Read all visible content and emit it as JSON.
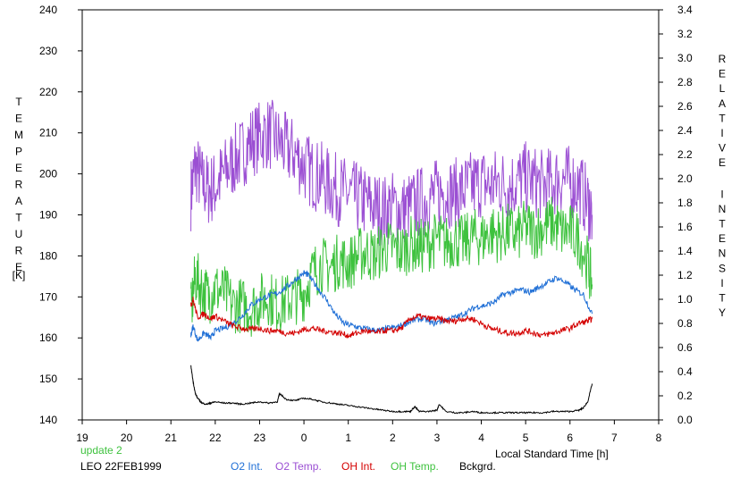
{
  "chart_data": {
    "type": "line",
    "title": "",
    "xlabel": "Local Standard Time [h]",
    "ylabel_left_letters": [
      "T",
      "E",
      "M",
      "P",
      "E",
      "R",
      "A",
      "T",
      "U",
      "R",
      "E"
    ],
    "ylabel_left_unit": "[K]",
    "ylabel_right_letters": [
      "R",
      "E",
      "L",
      "A",
      "T",
      "I",
      "V",
      "E",
      "I",
      "N",
      "T",
      "E",
      "N",
      "S",
      "I",
      "T",
      "Y"
    ],
    "x_ticks": [
      "19",
      "20",
      "21",
      "22",
      "23",
      "0",
      "1",
      "2",
      "3",
      "4",
      "5",
      "6",
      "7",
      "8"
    ],
    "xlim": [
      19,
      32
    ],
    "ylim_left": [
      140,
      240
    ],
    "y_ticks_left": [
      "140",
      "150",
      "160",
      "170",
      "180",
      "190",
      "200",
      "210",
      "220",
      "230",
      "240"
    ],
    "ylim_right": [
      0.0,
      3.4
    ],
    "y_ticks_right": [
      "0.0",
      "0.2",
      "0.4",
      "0.6",
      "0.8",
      "1.0",
      "1.2",
      "1.4",
      "1.6",
      "1.8",
      "2.0",
      "2.2",
      "2.4",
      "2.6",
      "2.8",
      "3.0",
      "3.2",
      "3.4"
    ],
    "grid": false,
    "update_note": "update 2",
    "station_label": "LEO 22FEB1999",
    "series": [
      {
        "name": "O2 Int.",
        "axis": "right",
        "color": "#1f6fd6",
        "x": [
          21.45,
          21.5,
          21.6,
          21.75,
          21.9,
          22.0,
          22.2,
          22.4,
          22.6,
          22.8,
          23.0,
          23.2,
          23.4,
          23.6,
          23.8,
          24.0,
          24.1,
          24.3,
          24.5,
          24.7,
          24.9,
          25.1,
          25.3,
          25.5,
          25.7,
          25.9,
          26.1,
          26.3,
          26.5,
          26.7,
          26.9,
          27.1,
          27.3,
          27.5,
          27.7,
          27.9,
          28.1,
          28.3,
          28.5,
          28.7,
          28.9,
          29.1,
          29.3,
          29.5,
          29.7,
          29.9,
          30.1,
          30.3,
          30.5
        ],
        "y": [
          0.7,
          0.78,
          0.66,
          0.72,
          0.68,
          0.74,
          0.76,
          0.8,
          0.86,
          0.95,
          1.0,
          1.03,
          1.05,
          1.1,
          1.16,
          1.22,
          1.2,
          1.1,
          1.0,
          0.88,
          0.8,
          0.78,
          0.76,
          0.75,
          0.74,
          0.76,
          0.77,
          0.8,
          0.83,
          0.84,
          0.8,
          0.82,
          0.84,
          0.86,
          0.9,
          0.94,
          0.95,
          0.98,
          1.04,
          1.06,
          1.08,
          1.06,
          1.1,
          1.14,
          1.18,
          1.14,
          1.08,
          1.04,
          0.88
        ]
      },
      {
        "name": "O2 Temp.",
        "axis": "left",
        "color": "#9b4fd3",
        "x": [
          21.45,
          21.55,
          21.7,
          21.85,
          22.0,
          22.2,
          22.4,
          22.6,
          22.8,
          23.0,
          23.2,
          23.4,
          23.6,
          23.8,
          24.0,
          24.2,
          24.4,
          24.6,
          24.8,
          25.0,
          25.2,
          25.4,
          25.6,
          25.8,
          26.0,
          26.2,
          26.4,
          26.6,
          26.8,
          27.0,
          27.2,
          27.4,
          27.6,
          27.8,
          28.0,
          28.2,
          28.4,
          28.6,
          28.8,
          29.0,
          29.2,
          29.4,
          29.6,
          29.8,
          30.0,
          30.2,
          30.4,
          30.5
        ],
        "y": [
          195,
          202,
          198,
          196,
          197,
          200,
          203,
          205,
          208,
          209,
          210,
          208,
          206,
          205,
          202,
          200,
          199,
          197,
          196,
          195,
          194,
          193,
          192,
          191,
          192,
          191,
          192,
          193,
          194,
          195,
          196,
          195,
          196,
          197,
          198,
          197,
          198,
          197,
          198,
          199,
          198,
          197,
          198,
          199,
          198,
          197,
          193,
          190
        ]
      },
      {
        "name": "OH Int.",
        "axis": "right",
        "color": "#d40000",
        "x": [
          21.45,
          21.5,
          21.6,
          21.75,
          21.9,
          22.0,
          22.2,
          22.4,
          22.6,
          22.8,
          23.0,
          23.2,
          23.4,
          23.6,
          23.8,
          24.0,
          24.2,
          24.4,
          24.6,
          24.8,
          25.0,
          25.2,
          25.4,
          25.6,
          25.8,
          26.0,
          26.2,
          26.4,
          26.6,
          26.8,
          27.0,
          27.2,
          27.4,
          27.6,
          27.8,
          28.0,
          28.2,
          28.4,
          28.6,
          28.8,
          29.0,
          29.2,
          29.4,
          29.6,
          29.8,
          30.0,
          30.2,
          30.4,
          30.5
        ],
        "y": [
          0.95,
          1.0,
          0.85,
          0.88,
          0.84,
          0.86,
          0.82,
          0.78,
          0.76,
          0.75,
          0.76,
          0.74,
          0.74,
          0.72,
          0.72,
          0.75,
          0.76,
          0.74,
          0.73,
          0.72,
          0.7,
          0.72,
          0.74,
          0.72,
          0.74,
          0.74,
          0.76,
          0.84,
          0.86,
          0.84,
          0.84,
          0.82,
          0.82,
          0.84,
          0.84,
          0.8,
          0.76,
          0.74,
          0.72,
          0.72,
          0.74,
          0.72,
          0.7,
          0.72,
          0.74,
          0.76,
          0.8,
          0.82,
          0.84
        ]
      },
      {
        "name": "OH Temp.",
        "axis": "left",
        "color": "#3ec23e",
        "x": [
          21.45,
          21.55,
          21.7,
          21.85,
          22.0,
          22.2,
          22.4,
          22.6,
          22.8,
          23.0,
          23.2,
          23.4,
          23.6,
          23.8,
          24.0,
          24.2,
          24.4,
          24.6,
          24.8,
          25.0,
          25.2,
          25.4,
          25.6,
          25.8,
          26.0,
          26.2,
          26.4,
          26.6,
          26.8,
          27.0,
          27.2,
          27.4,
          27.6,
          27.8,
          28.0,
          28.2,
          28.4,
          28.6,
          28.8,
          29.0,
          29.2,
          29.4,
          29.6,
          29.8,
          30.0,
          30.2,
          30.4,
          30.5
        ],
        "y": [
          166,
          175,
          172,
          170,
          172,
          171,
          168,
          168,
          167,
          169,
          170,
          168,
          169,
          170,
          171,
          176,
          178,
          177,
          179,
          178,
          180,
          181,
          180,
          182,
          182,
          181,
          183,
          182,
          183,
          184,
          183,
          184,
          183,
          185,
          184,
          186,
          185,
          186,
          185,
          187,
          186,
          187,
          188,
          186,
          186,
          184,
          178,
          173
        ]
      },
      {
        "name": "Bckgrd.",
        "axis": "right",
        "color": "#000000",
        "x": [
          21.45,
          21.5,
          21.55,
          21.6,
          21.7,
          21.8,
          21.9,
          22.0,
          22.2,
          22.4,
          22.6,
          22.8,
          23.0,
          23.2,
          23.4,
          23.45,
          23.6,
          23.8,
          24.0,
          24.2,
          24.4,
          24.6,
          24.8,
          25.0,
          25.2,
          25.4,
          25.6,
          25.8,
          26.0,
          26.2,
          26.4,
          26.5,
          26.6,
          26.8,
          27.0,
          27.05,
          27.2,
          27.4,
          27.6,
          27.8,
          28.0,
          28.2,
          28.4,
          28.6,
          28.8,
          29.0,
          29.2,
          29.4,
          29.6,
          29.8,
          30.0,
          30.2,
          30.3,
          30.4,
          30.5
        ],
        "y": [
          0.45,
          0.32,
          0.22,
          0.18,
          0.14,
          0.13,
          0.14,
          0.15,
          0.14,
          0.14,
          0.13,
          0.14,
          0.15,
          0.14,
          0.15,
          0.22,
          0.17,
          0.16,
          0.18,
          0.17,
          0.15,
          0.14,
          0.13,
          0.12,
          0.11,
          0.1,
          0.09,
          0.08,
          0.07,
          0.07,
          0.07,
          0.11,
          0.07,
          0.07,
          0.08,
          0.13,
          0.07,
          0.06,
          0.06,
          0.07,
          0.06,
          0.06,
          0.06,
          0.06,
          0.06,
          0.06,
          0.06,
          0.06,
          0.07,
          0.07,
          0.07,
          0.08,
          0.1,
          0.15,
          0.3
        ]
      }
    ]
  }
}
